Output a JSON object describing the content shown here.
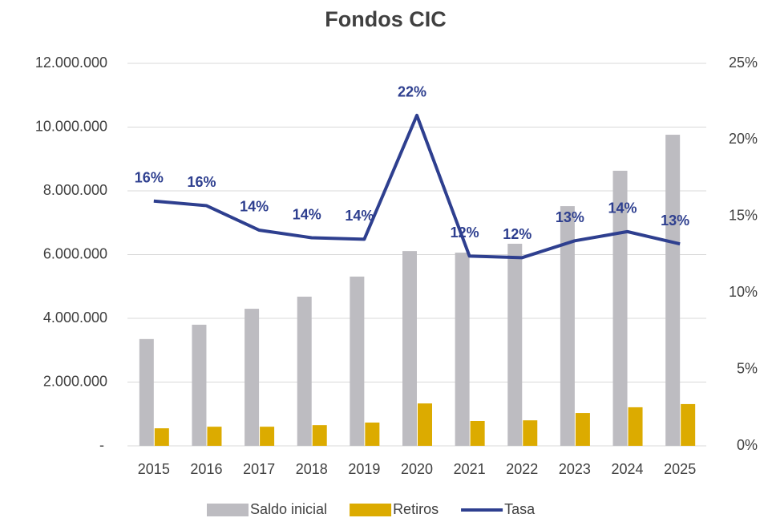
{
  "chart_data": {
    "type": "bar_line",
    "title": "Fondos CIC",
    "categories": [
      "2015",
      "2016",
      "2017",
      "2018",
      "2019",
      "2020",
      "2021",
      "2022",
      "2023",
      "2024",
      "2025"
    ],
    "series": [
      {
        "name": "Saldo inicial",
        "type": "bar",
        "color": "#bdbcc1",
        "values": [
          3350000,
          3800000,
          4300000,
          4680000,
          5310000,
          6110000,
          6060000,
          6340000,
          7520000,
          8630000,
          9760000
        ]
      },
      {
        "name": "Retiros",
        "type": "bar",
        "color": "#dcab00",
        "values": [
          550000,
          600000,
          600000,
          650000,
          730000,
          1330000,
          780000,
          800000,
          1030000,
          1210000,
          1310000
        ]
      },
      {
        "name": "Tasa",
        "type": "line",
        "axis": "y2",
        "color": "#2e3f8f",
        "values": [
          16.0,
          15.7,
          14.1,
          13.6,
          13.5,
          21.6,
          12.4,
          12.3,
          13.4,
          14.0,
          13.2
        ],
        "value_labels": [
          "16%",
          "16%",
          "14%",
          "14%",
          "14%",
          "22%",
          "12%",
          "12%",
          "13%",
          "14%",
          "13%"
        ]
      }
    ],
    "ylim": [
      0,
      12000000
    ],
    "yticks": [
      {
        "value": 0,
        "label": "-"
      },
      {
        "value": 2000000,
        "label": "2.000.000"
      },
      {
        "value": 4000000,
        "label": "4.000.000"
      },
      {
        "value": 6000000,
        "label": "6.000.000"
      },
      {
        "value": 8000000,
        "label": "8.000.000"
      },
      {
        "value": 10000000,
        "label": "10.000.000"
      },
      {
        "value": 12000000,
        "label": "12.000.000"
      }
    ],
    "y2lim": [
      0,
      25
    ],
    "y2ticks": [
      {
        "value": 0,
        "label": "0%"
      },
      {
        "value": 5,
        "label": "5%"
      },
      {
        "value": 10,
        "label": "10%"
      },
      {
        "value": 15,
        "label": "15%"
      },
      {
        "value": 20,
        "label": "20%"
      },
      {
        "value": 25,
        "label": "25%"
      }
    ],
    "grid": true,
    "legend": "bottom"
  }
}
